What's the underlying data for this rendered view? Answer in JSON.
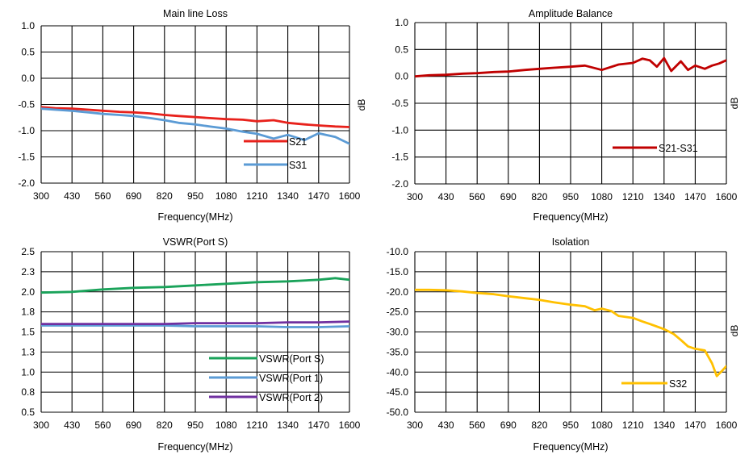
{
  "chart_data": [
    {
      "type": "line",
      "title": "Main line Loss",
      "xlabel": "Frequency(MHz)",
      "ylabel": "dB",
      "x_ticks": [
        "300",
        "430",
        "560",
        "690",
        "820",
        "950",
        "1080",
        "1210",
        "1340",
        "1470",
        "1600"
      ],
      "y_ticks": [
        "1.0",
        "0.5",
        "0.0",
        "-0.5",
        "-1.0",
        "-1.5",
        "-2.0"
      ],
      "xlim": [
        300,
        1600
      ],
      "ylim": [
        -2.0,
        1.0
      ],
      "grid": true,
      "legend_position": "bottom-right",
      "series": [
        {
          "name": "S21",
          "color": "#e8211b",
          "x": [
            300,
            360,
            430,
            500,
            560,
            630,
            690,
            760,
            820,
            880,
            950,
            1010,
            1080,
            1150,
            1210,
            1280,
            1340,
            1410,
            1470,
            1540,
            1600
          ],
          "y": [
            -0.55,
            -0.57,
            -0.58,
            -0.6,
            -0.62,
            -0.64,
            -0.65,
            -0.67,
            -0.7,
            -0.72,
            -0.74,
            -0.76,
            -0.78,
            -0.79,
            -0.82,
            -0.8,
            -0.85,
            -0.88,
            -0.9,
            -0.92,
            -0.93
          ]
        },
        {
          "name": "S31",
          "color": "#5b9bd5",
          "x": [
            300,
            360,
            430,
            500,
            560,
            630,
            690,
            760,
            820,
            880,
            950,
            1010,
            1080,
            1150,
            1210,
            1280,
            1340,
            1410,
            1470,
            1540,
            1600
          ],
          "y": [
            -0.58,
            -0.6,
            -0.62,
            -0.65,
            -0.68,
            -0.7,
            -0.72,
            -0.76,
            -0.8,
            -0.85,
            -0.88,
            -0.92,
            -0.96,
            -1.02,
            -1.06,
            -1.15,
            -1.08,
            -1.18,
            -1.05,
            -1.12,
            -1.25
          ]
        }
      ]
    },
    {
      "type": "line",
      "title": "Amplitude Balance",
      "xlabel": "Frequency(MHz)",
      "ylabel": "dB",
      "x_ticks": [
        "300",
        "430",
        "560",
        "690",
        "820",
        "950",
        "1080",
        "1210",
        "1340",
        "1470",
        "1600"
      ],
      "y_ticks": [
        "1.0",
        "0.5",
        "0.0",
        "-0.5",
        "-1.0",
        "-1.5",
        "-2.0"
      ],
      "xlim": [
        300,
        1600
      ],
      "ylim": [
        -2.0,
        1.0
      ],
      "grid": true,
      "legend_position": "bottom-right",
      "series": [
        {
          "name": "S21-S31",
          "color": "#c00000",
          "x": [
            300,
            360,
            430,
            500,
            560,
            630,
            690,
            760,
            820,
            880,
            950,
            1010,
            1080,
            1150,
            1210,
            1250,
            1280,
            1310,
            1340,
            1370,
            1410,
            1440,
            1470,
            1510,
            1540,
            1570,
            1600
          ],
          "y": [
            0.0,
            0.02,
            0.03,
            0.05,
            0.06,
            0.08,
            0.09,
            0.12,
            0.14,
            0.16,
            0.18,
            0.2,
            0.12,
            0.22,
            0.25,
            0.33,
            0.3,
            0.18,
            0.34,
            0.1,
            0.28,
            0.12,
            0.2,
            0.14,
            0.2,
            0.24,
            0.3
          ]
        }
      ]
    },
    {
      "type": "line",
      "title": "VSWR(Port S)",
      "xlabel": "Frequency(MHz)",
      "ylabel": "",
      "x_ticks": [
        "300",
        "430",
        "560",
        "690",
        "820",
        "950",
        "1080",
        "1210",
        "1340",
        "1470",
        "1600"
      ],
      "y_ticks": [
        "2.5",
        "2.3",
        "2.0",
        "1.8",
        "1.5",
        "1.3",
        "1.0",
        "0.8",
        "0.5"
      ],
      "xlim": [
        300,
        1600
      ],
      "ylim": [
        0.5,
        2.5
      ],
      "grid": true,
      "legend_position": "bottom-right",
      "series": [
        {
          "name": "VSWR(Port S)",
          "color": "#1aa35a",
          "x": [
            300,
            430,
            560,
            690,
            820,
            950,
            1080,
            1210,
            1340,
            1470,
            1540,
            1600
          ],
          "y": [
            1.99,
            2.0,
            2.03,
            2.05,
            2.06,
            2.08,
            2.1,
            2.12,
            2.13,
            2.15,
            2.17,
            2.15
          ]
        },
        {
          "name": "VSWR(Port 1)",
          "color": "#5b9bd5",
          "x": [
            300,
            430,
            560,
            690,
            820,
            950,
            1080,
            1210,
            1340,
            1470,
            1600
          ],
          "y": [
            1.58,
            1.58,
            1.58,
            1.58,
            1.58,
            1.57,
            1.57,
            1.57,
            1.56,
            1.56,
            1.57
          ]
        },
        {
          "name": "VSWR(Port 2)",
          "color": "#7030a0",
          "x": [
            300,
            430,
            560,
            690,
            820,
            950,
            1080,
            1210,
            1340,
            1470,
            1600
          ],
          "y": [
            1.6,
            1.6,
            1.6,
            1.6,
            1.6,
            1.61,
            1.61,
            1.61,
            1.62,
            1.62,
            1.63
          ]
        }
      ]
    },
    {
      "type": "line",
      "title": "Isolation",
      "xlabel": "Frequency(MHz)",
      "ylabel": "dB",
      "x_ticks": [
        "300",
        "430",
        "560",
        "690",
        "820",
        "950",
        "1080",
        "1210",
        "1340",
        "1470",
        "1600"
      ],
      "y_ticks": [
        "-10.0",
        "-15.0",
        "-20.0",
        "-25.0",
        "-30.0",
        "-35.0",
        "-40.0",
        "-45.0",
        "-50.0"
      ],
      "xlim": [
        300,
        1600
      ],
      "ylim": [
        -50.0,
        -10.0
      ],
      "grid": true,
      "legend_position": "bottom-right",
      "series": [
        {
          "name": "S32",
          "color": "#ffc000",
          "x": [
            300,
            360,
            430,
            500,
            560,
            630,
            690,
            760,
            820,
            880,
            950,
            1010,
            1050,
            1080,
            1120,
            1150,
            1210,
            1250,
            1280,
            1340,
            1380,
            1410,
            1440,
            1470,
            1510,
            1540,
            1560,
            1580,
            1600
          ],
          "y": [
            -19.5,
            -19.5,
            -19.6,
            -19.9,
            -20.3,
            -20.6,
            -21.1,
            -21.6,
            -22.0,
            -22.6,
            -23.2,
            -23.6,
            -24.6,
            -24.2,
            -24.8,
            -26.0,
            -26.5,
            -27.4,
            -28.0,
            -29.3,
            -30.5,
            -32.0,
            -33.6,
            -34.2,
            -34.6,
            -37.8,
            -41.0,
            -39.8,
            -38.5
          ]
        }
      ]
    }
  ]
}
